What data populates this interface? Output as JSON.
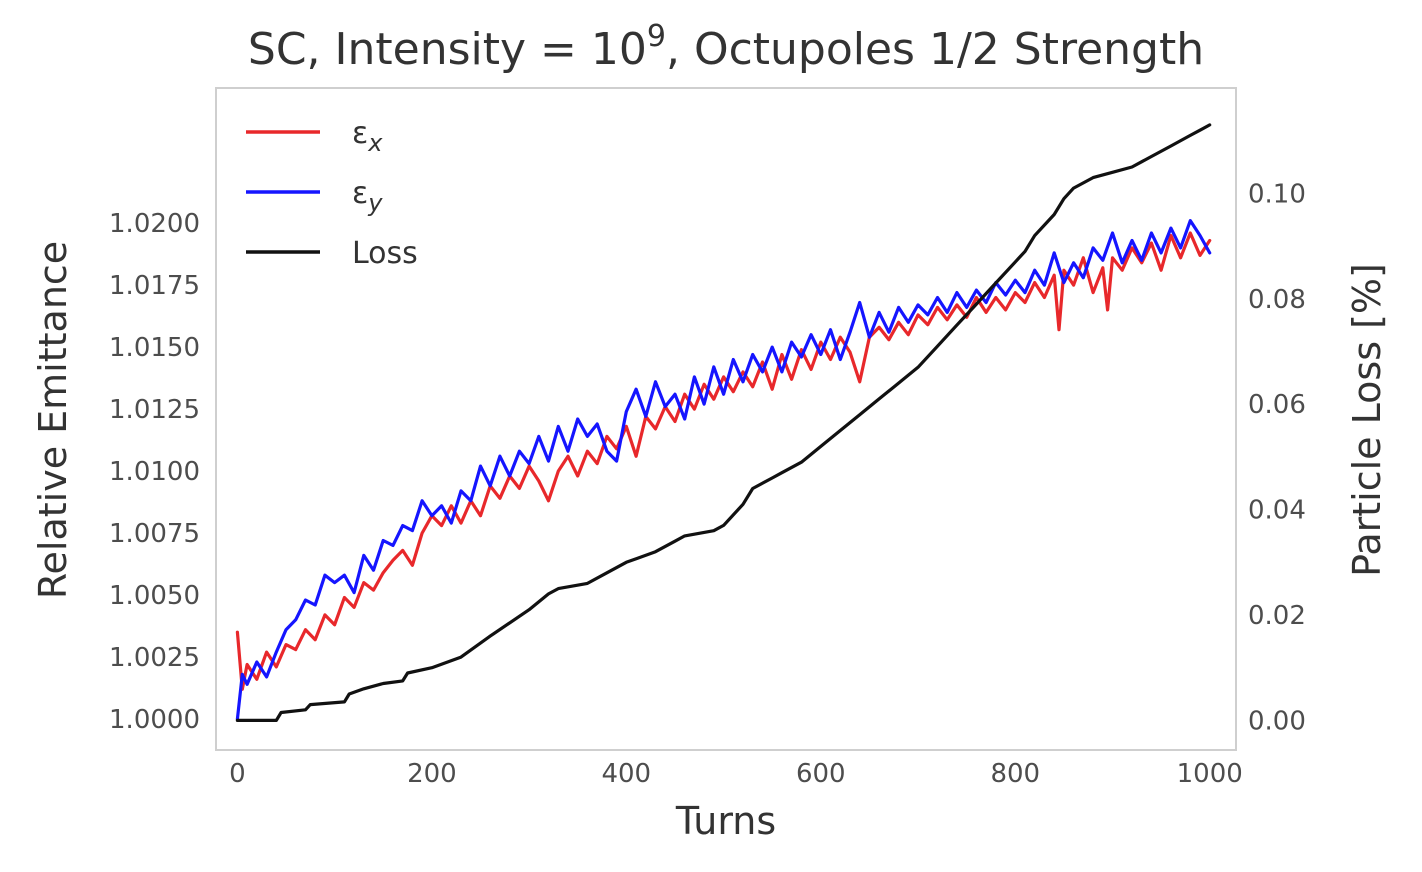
{
  "chart_data": {
    "type": "line",
    "title": {
      "prefix": "SC, Intensity = 10",
      "superscript": "9",
      "suffix": ", Octupoles 1/2 Strength"
    },
    "xlabel": "Turns",
    "ylabel": "Relative Emittance",
    "y2label": "Particle Loss [%]",
    "xlim": [
      -22,
      1027
    ],
    "ylim": [
      0.99875,
      1.02545
    ],
    "y2lim": [
      -0.00562,
      0.12
    ],
    "xticks": [
      0,
      200,
      400,
      600,
      800,
      1000
    ],
    "xtick_labels": [
      "0",
      "200",
      "400",
      "600",
      "800",
      "1000"
    ],
    "yticks": [
      1.0,
      1.0025,
      1.005,
      1.0075,
      1.01,
      1.0125,
      1.015,
      1.0175,
      1.02
    ],
    "ytick_labels": [
      "1.0000",
      "1.0025",
      "1.0050",
      "1.0075",
      "1.0100",
      "1.0125",
      "1.0150",
      "1.0175",
      "1.0200"
    ],
    "y2ticks": [
      0.0,
      0.02,
      0.04,
      0.06,
      0.08,
      0.1
    ],
    "y2tick_labels": [
      "0.00",
      "0.02",
      "0.04",
      "0.06",
      "0.08",
      "0.10"
    ],
    "grid": false,
    "legend": {
      "location": "upper-left",
      "entries": [
        {
          "symbol": "ε",
          "subscript": "x",
          "color": "#e8282b"
        },
        {
          "symbol": "ε",
          "subscript": "y",
          "color": "#1515ff"
        },
        {
          "symbol": "Loss",
          "subscript": "",
          "color": "#111111"
        }
      ]
    },
    "series": [
      {
        "key": "ex",
        "color": "#e8282b",
        "axis": "left",
        "x": [
          0,
          5,
          10,
          20,
          30,
          40,
          50,
          60,
          70,
          80,
          90,
          100,
          110,
          120,
          130,
          140,
          150,
          160,
          170,
          180,
          190,
          200,
          210,
          220,
          230,
          240,
          250,
          260,
          270,
          280,
          290,
          300,
          310,
          320,
          330,
          340,
          350,
          360,
          370,
          380,
          390,
          400,
          410,
          420,
          430,
          440,
          450,
          460,
          470,
          480,
          490,
          500,
          510,
          520,
          530,
          540,
          550,
          560,
          570,
          580,
          590,
          600,
          610,
          620,
          630,
          640,
          650,
          660,
          670,
          680,
          690,
          700,
          710,
          720,
          730,
          740,
          750,
          760,
          770,
          780,
          790,
          800,
          810,
          820,
          830,
          840,
          845,
          850,
          860,
          870,
          880,
          890,
          895,
          900,
          910,
          920,
          930,
          940,
          950,
          960,
          970,
          980,
          990,
          1000
        ],
        "y": [
          1.0035,
          1.0012,
          1.0022,
          1.0016,
          1.0027,
          1.0021,
          1.003,
          1.0028,
          1.0036,
          1.0032,
          1.0042,
          1.0038,
          1.0049,
          1.0045,
          1.0055,
          1.0052,
          1.0059,
          1.0064,
          1.0068,
          1.0062,
          1.0075,
          1.0082,
          1.0078,
          1.0086,
          1.0079,
          1.0088,
          1.0082,
          1.0094,
          1.0089,
          1.0098,
          1.0093,
          1.0102,
          1.0096,
          1.0088,
          1.01,
          1.0106,
          1.0098,
          1.0108,
          1.0103,
          1.0114,
          1.0109,
          1.0118,
          1.0106,
          1.0122,
          1.0117,
          1.0126,
          1.012,
          1.0131,
          1.0125,
          1.0135,
          1.0129,
          1.0138,
          1.0132,
          1.014,
          1.0134,
          1.0144,
          1.0133,
          1.0147,
          1.0137,
          1.0149,
          1.0141,
          1.0152,
          1.0145,
          1.0154,
          1.0148,
          1.0136,
          1.0154,
          1.0158,
          1.0153,
          1.016,
          1.0155,
          1.0163,
          1.0159,
          1.0166,
          1.0161,
          1.0167,
          1.0162,
          1.017,
          1.0164,
          1.017,
          1.0165,
          1.0172,
          1.0168,
          1.0176,
          1.017,
          1.0179,
          1.0157,
          1.0181,
          1.0175,
          1.0186,
          1.0172,
          1.0182,
          1.0165,
          1.0186,
          1.0181,
          1.019,
          1.0184,
          1.0192,
          1.0181,
          1.0195,
          1.0186,
          1.0196,
          1.0187,
          1.0193
        ]
      },
      {
        "key": "ey",
        "color": "#1515ff",
        "axis": "left",
        "x": [
          0,
          5,
          10,
          20,
          30,
          40,
          50,
          60,
          70,
          80,
          90,
          100,
          110,
          120,
          130,
          140,
          150,
          160,
          170,
          180,
          190,
          200,
          210,
          220,
          230,
          240,
          250,
          260,
          270,
          280,
          290,
          300,
          310,
          320,
          330,
          340,
          350,
          360,
          370,
          380,
          390,
          400,
          410,
          420,
          430,
          440,
          450,
          460,
          470,
          480,
          490,
          500,
          510,
          520,
          530,
          540,
          550,
          560,
          570,
          580,
          590,
          600,
          610,
          620,
          630,
          640,
          650,
          660,
          670,
          680,
          690,
          700,
          710,
          720,
          730,
          740,
          750,
          760,
          770,
          780,
          790,
          800,
          810,
          820,
          830,
          840,
          850,
          860,
          870,
          880,
          890,
          900,
          910,
          920,
          930,
          940,
          950,
          960,
          970,
          980,
          990,
          1000
        ],
        "y": [
          1.0,
          1.0018,
          1.0014,
          1.0023,
          1.0017,
          1.0027,
          1.0036,
          1.004,
          1.0048,
          1.0046,
          1.0058,
          1.0055,
          1.0058,
          1.0051,
          1.0066,
          1.006,
          1.0072,
          1.007,
          1.0078,
          1.0076,
          1.0088,
          1.0082,
          1.0086,
          1.0079,
          1.0092,
          1.0088,
          1.0102,
          1.0094,
          1.0106,
          1.0098,
          1.0108,
          1.0103,
          1.0114,
          1.0104,
          1.0118,
          1.0108,
          1.0121,
          1.0114,
          1.0119,
          1.0108,
          1.0104,
          1.0124,
          1.0133,
          1.0122,
          1.0136,
          1.0126,
          1.0131,
          1.0121,
          1.0138,
          1.0127,
          1.0142,
          1.0131,
          1.0145,
          1.0136,
          1.0147,
          1.014,
          1.015,
          1.014,
          1.0152,
          1.0146,
          1.0155,
          1.0147,
          1.0157,
          1.0145,
          1.0156,
          1.0168,
          1.0154,
          1.0164,
          1.0156,
          1.0166,
          1.016,
          1.0167,
          1.0163,
          1.017,
          1.0164,
          1.0172,
          1.0166,
          1.0173,
          1.0168,
          1.0176,
          1.0171,
          1.0177,
          1.0172,
          1.0181,
          1.0175,
          1.0188,
          1.0176,
          1.0184,
          1.0178,
          1.019,
          1.0185,
          1.0196,
          1.0184,
          1.0193,
          1.0185,
          1.0196,
          1.0188,
          1.0198,
          1.019,
          1.0201,
          1.0195,
          1.0188
        ]
      },
      {
        "key": "loss",
        "color": "#111111",
        "axis": "right",
        "x": [
          0,
          5,
          40,
          45,
          70,
          75,
          110,
          115,
          130,
          150,
          170,
          175,
          200,
          230,
          260,
          300,
          320,
          330,
          360,
          380,
          400,
          430,
          450,
          460,
          490,
          500,
          520,
          530,
          550,
          560,
          580,
          600,
          620,
          640,
          660,
          680,
          700,
          720,
          740,
          760,
          780,
          800,
          810,
          820,
          840,
          850,
          860,
          880,
          900,
          920,
          940,
          960,
          980,
          990,
          1000
        ],
        "y": [
          0.0,
          0.0,
          0.0,
          0.0015,
          0.002,
          0.003,
          0.0035,
          0.005,
          0.006,
          0.007,
          0.0075,
          0.009,
          0.01,
          0.012,
          0.016,
          0.021,
          0.024,
          0.025,
          0.026,
          0.028,
          0.03,
          0.032,
          0.034,
          0.035,
          0.036,
          0.037,
          0.041,
          0.044,
          0.046,
          0.047,
          0.049,
          0.052,
          0.055,
          0.058,
          0.061,
          0.064,
          0.067,
          0.071,
          0.075,
          0.079,
          0.083,
          0.087,
          0.089,
          0.092,
          0.096,
          0.099,
          0.101,
          0.103,
          0.104,
          0.105,
          0.107,
          0.109,
          0.111,
          0.112,
          0.113
        ]
      }
    ]
  }
}
